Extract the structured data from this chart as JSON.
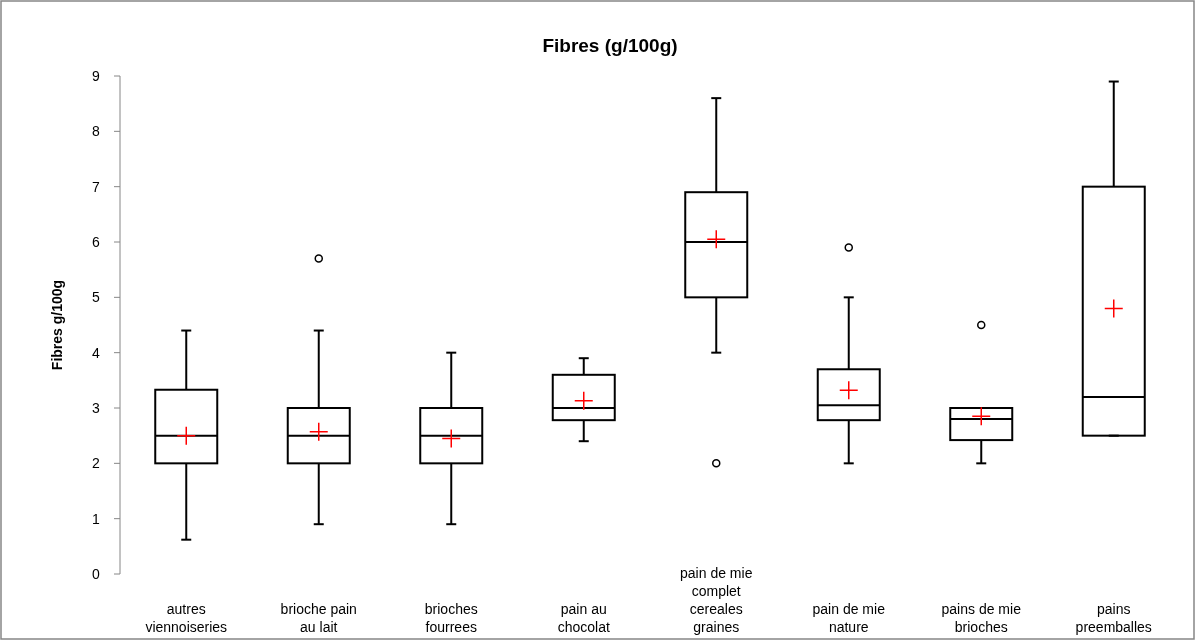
{
  "chart_data": {
    "type": "box",
    "title": "Fibres (g/100g)",
    "ylabel": "Fibres g/100g",
    "categories": [
      "autres viennoiseries",
      "brioche pain au lait",
      "brioches fourrees",
      "pain au chocolat",
      "pain de mie complet cereales graines",
      "pain de mie nature",
      "pains de mie brioches",
      "pains preemballes"
    ],
    "boxes": [
      {
        "low": 0.62,
        "q1": 2,
        "median": 2.5,
        "q3": 3.33,
        "high": 4.4,
        "mean": 2.5
      },
      {
        "low": 0.9,
        "q1": 2,
        "median": 2.5,
        "q3": 3,
        "high": 4.4,
        "mean": 2.57,
        "outliers": [
          5.7
        ]
      },
      {
        "low": 0.9,
        "q1": 2,
        "median": 2.5,
        "q3": 3,
        "high": 4,
        "mean": 2.45
      },
      {
        "low": 2.4,
        "q1": 2.78,
        "median": 3,
        "q3": 3.6,
        "high": 3.9,
        "mean": 3.13
      },
      {
        "low": 4,
        "q1": 5,
        "median": 6,
        "q3": 6.9,
        "high": 8.6,
        "mean": 6.05,
        "outliers": [
          2
        ]
      },
      {
        "low": 2,
        "q1": 2.78,
        "median": 3.05,
        "q3": 3.7,
        "high": 5,
        "mean": 3.32,
        "outliers": [
          5.9
        ]
      },
      {
        "low": 2,
        "q1": 2.42,
        "median": 2.8,
        "q3": 3,
        "high": 3,
        "mean": 2.85,
        "outliers": [
          4.5
        ]
      },
      {
        "low": 2.5,
        "q1": 2.5,
        "median": 3.2,
        "q3": 7,
        "high": 8.9,
        "mean": 4.8
      }
    ],
    "color": "#000000",
    "ylim": [
      0,
      9
    ],
    "yticks": [
      0,
      1,
      2,
      3,
      4,
      5,
      6,
      7,
      8,
      9
    ],
    "grid": false
  }
}
